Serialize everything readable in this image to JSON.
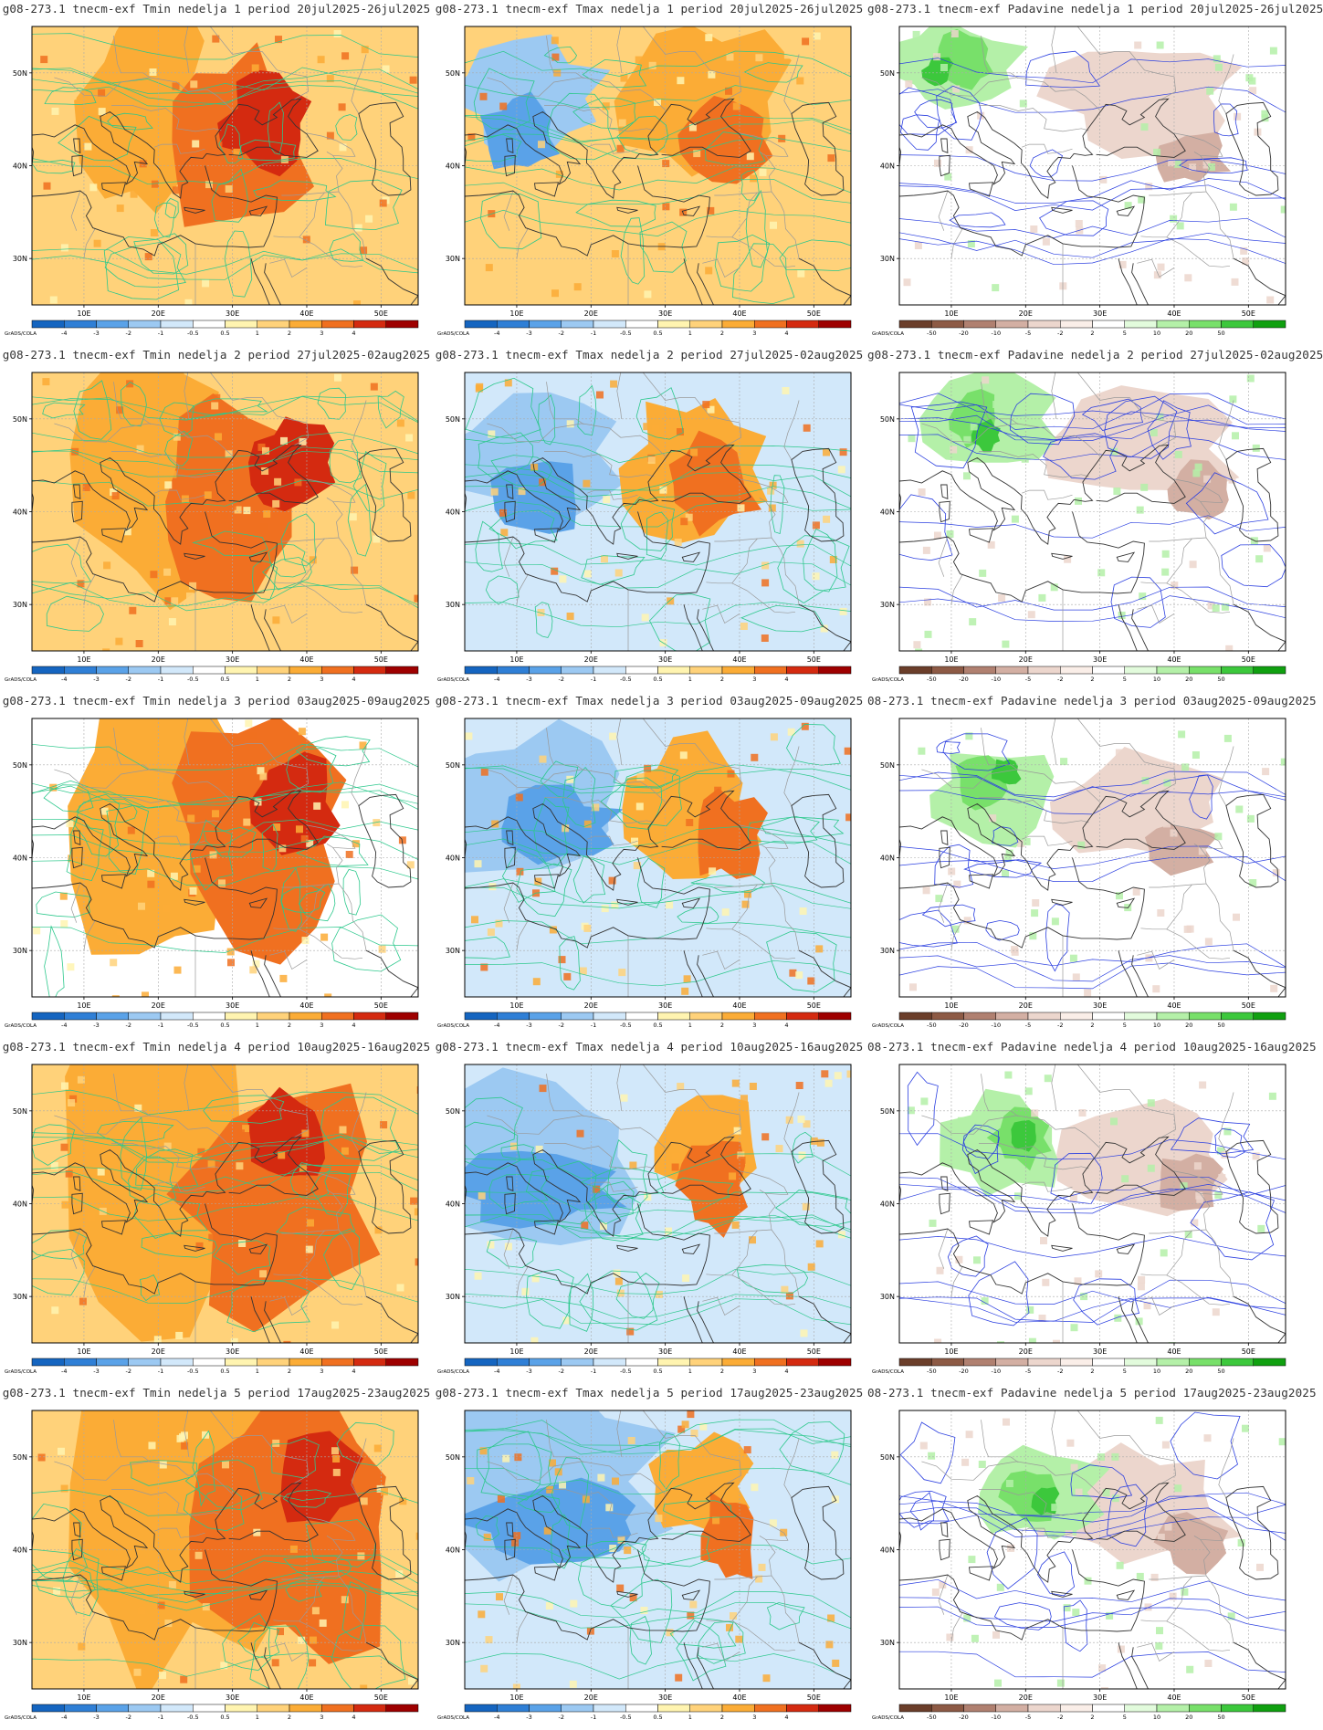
{
  "figure": {
    "source_label": "GrADS/COLA",
    "lat_ticks": [
      "30N",
      "40N",
      "50N"
    ],
    "lon_ticks": [
      "10E",
      "20E",
      "30E",
      "40E",
      "50E"
    ],
    "rows": [
      {
        "week": 1,
        "titles": [
          "g08-273.1 tnecm-exf Tmin nedelja 1 period 20jul2025-26jul2025",
          "g08-273.1 tnecm-exf Tmax nedelja 1 period 20jul2025-26jul2025",
          "g08-273.1 tnecm-exf Padavine nedelja 1 period 20jul2025-26jul2025"
        ]
      },
      {
        "week": 2,
        "titles": [
          "g08-273.1 tnecm-exf Tmin nedelja 2 period 27jul2025-02aug2025",
          "g08-273.1 tnecm-exf Tmax nedelja 2 period 27jul2025-02aug2025",
          "g08-273.1 tnecm-exf Padavine nedelja 2 period 27jul2025-02aug2025"
        ]
      },
      {
        "week": 3,
        "titles": [
          "g08-273.1 tnecm-exf Tmin nedelja 3 period 03aug2025-09aug2025",
          "g08-273.1 tnecm-exf Tmax nedelja 3 period 03aug2025-09aug2025",
          "08-273.1 tnecm-exf Padavine nedelja 3 period 03aug2025-09aug2025"
        ]
      },
      {
        "week": 4,
        "titles": [
          "g08-273.1 tnecm-exf Tmin nedelja 4 period 10aug2025-16aug2025",
          "g08-273.1 tnecm-exf Tmax nedelja 4 period 10aug2025-16aug2025",
          "08-273.1 tnecm-exf Padavine nedelja 4 period 10aug2025-16aug2025"
        ]
      },
      {
        "week": 5,
        "titles": [
          "g08-273.1 tnecm-exf Tmin nedelja 5 period 17aug2025-23aug2025",
          "g08-273.1 tnecm-exf Tmax nedelja 5 period 17aug2025-23aug2025",
          "08-273.1 tnecm-exf Padavine nedelja 5 period 17aug2025-23aug2025"
        ]
      }
    ],
    "temp_colorbar": {
      "labels": [
        "-4",
        "-3",
        "-2",
        "-1",
        "-0.5",
        "0.5",
        "1",
        "2",
        "3",
        "4"
      ],
      "colors": [
        "#1565c0",
        "#2f7fd6",
        "#5aa2e8",
        "#9cc9f2",
        "#d2e8fa",
        "#ffffff",
        "#fff4b0",
        "#ffd27a",
        "#fbac36",
        "#f07020",
        "#d42a10",
        "#9e0000"
      ]
    },
    "precip_colorbar": {
      "labels": [
        "-50",
        "-20",
        "-10",
        "-5",
        "-2",
        "2",
        "5",
        "10",
        "20",
        "50"
      ],
      "colors": [
        "#6b3e2a",
        "#8d5a45",
        "#b08070",
        "#d3afa3",
        "#ecd6cd",
        "#faeee8",
        "#ffffff",
        "#e2fbdc",
        "#b4f0a8",
        "#78e06a",
        "#3cc83c",
        "#10a010"
      ]
    }
  }
}
